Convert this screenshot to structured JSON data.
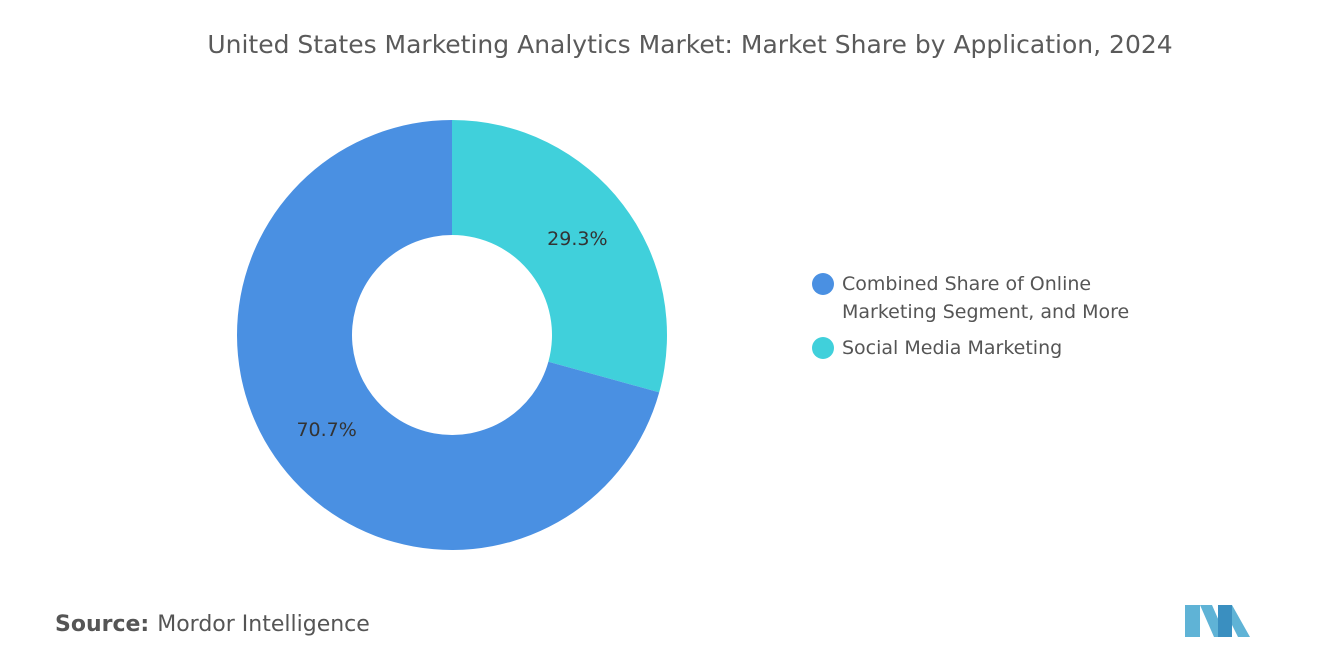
{
  "chart_data": {
    "type": "donut",
    "title": "United States Marketing Analytics Market: Market Share by Application, 2024",
    "categories": [
      "Combined Share of Online Marketing Segment, and More",
      "Social Media Marketing"
    ],
    "values": [
      70.7,
      29.3
    ],
    "value_labels": [
      "70.7%",
      "29.3%"
    ],
    "colors": [
      "#4a90e2",
      "#40d0db"
    ]
  },
  "source": {
    "label": "Source:",
    "text": "Mordor Intelligence"
  }
}
